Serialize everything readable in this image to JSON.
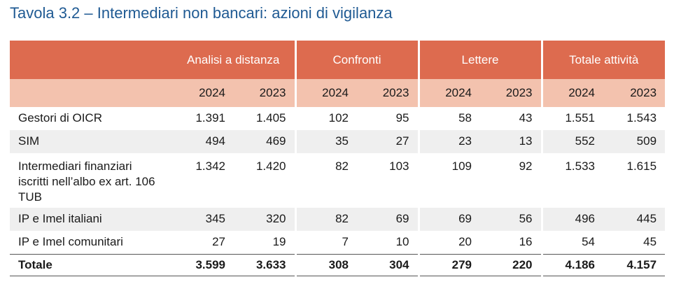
{
  "title": "Tavola 3.2 – Intermediari non bancari: azioni di vigilanza",
  "groups": [
    "Analisi a distanza",
    "Confronti",
    "Lettere",
    "Totale attività"
  ],
  "years": [
    "2024",
    "2023"
  ],
  "rows": [
    {
      "label": "Gestori di OICR",
      "values": [
        "1.391",
        "1.405",
        "102",
        "95",
        "58",
        "43",
        "1.551",
        "1.543"
      ]
    },
    {
      "label": "SIM",
      "values": [
        "494",
        "469",
        "35",
        "27",
        "23",
        "13",
        "552",
        "509"
      ]
    },
    {
      "label": "Intermediari finanziari iscritti nell’albo ex art. 106 TUB",
      "values": [
        "1.342",
        "1.420",
        "82",
        "103",
        "109",
        "92",
        "1.533",
        "1.615"
      ]
    },
    {
      "label": "IP e Imel italiani",
      "values": [
        "345",
        "320",
        "82",
        "69",
        "69",
        "56",
        "496",
        "445"
      ]
    },
    {
      "label": "IP e Imel comunitari",
      "values": [
        "27",
        "19",
        "7",
        "10",
        "20",
        "16",
        "54",
        "45"
      ]
    }
  ],
  "total": {
    "label": "Totale",
    "values": [
      "3.599",
      "3.633",
      "308",
      "304",
      "279",
      "220",
      "4.186",
      "4.157"
    ]
  }
}
